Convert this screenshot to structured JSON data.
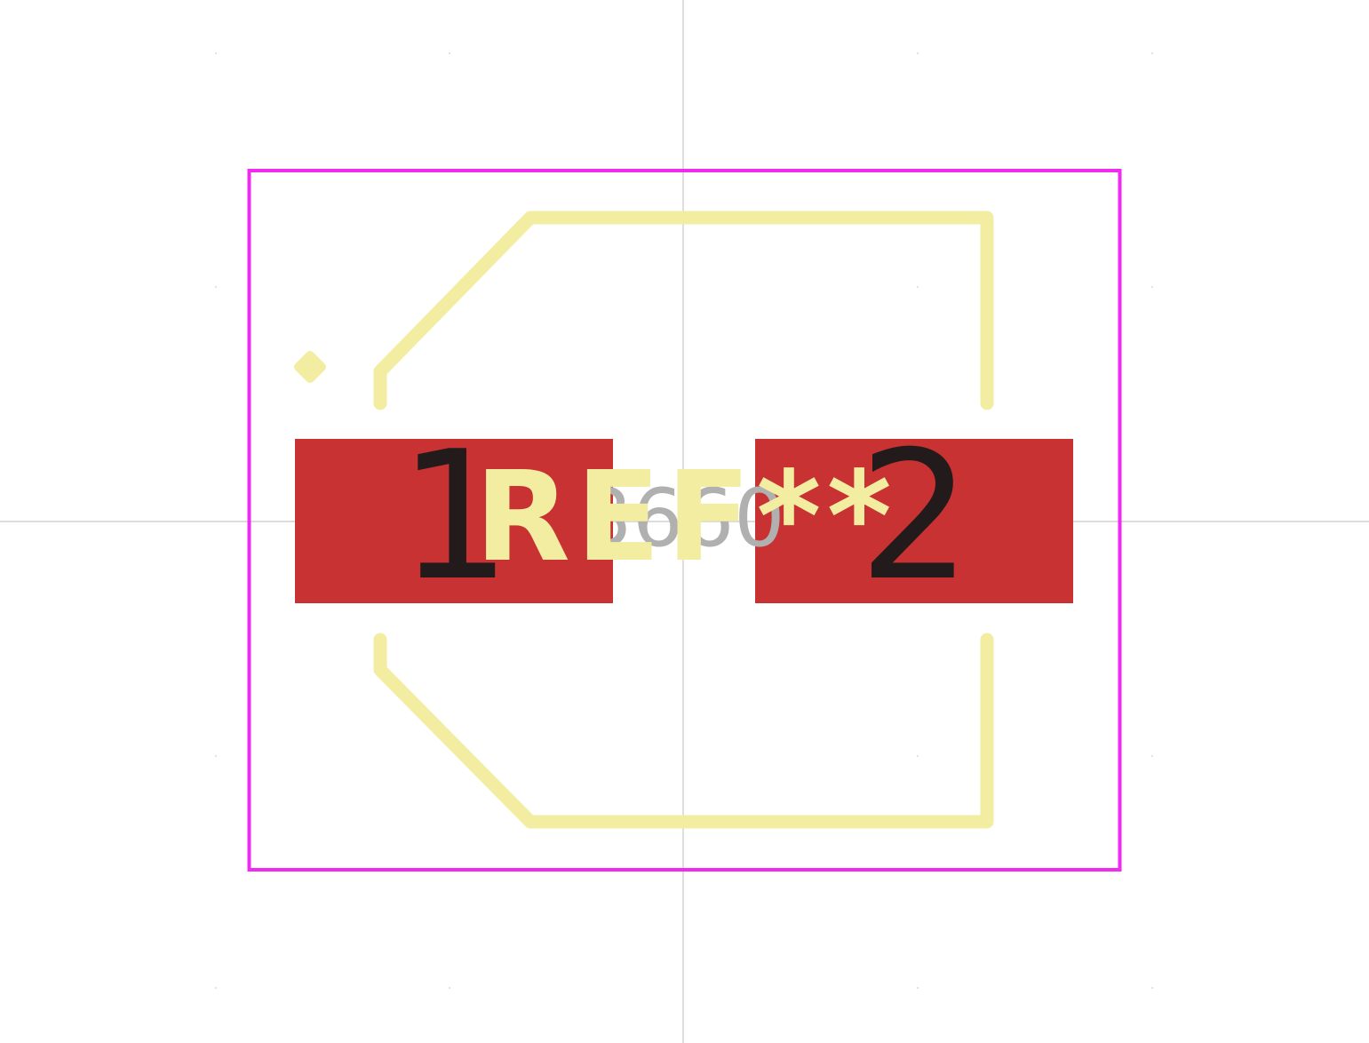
{
  "footprint": {
    "reference": "REF**",
    "value": "3660",
    "pads": [
      {
        "number": "1"
      },
      {
        "number": "2"
      }
    ]
  },
  "colors": {
    "background": "#ffffff",
    "grid_axis": "#c8c8c8",
    "courtyard": "#f02bf0",
    "silkscreen": "#f2eda1",
    "pad": "#c83232",
    "pad_number": "#231a1c",
    "fab_text": "#b0b0b0"
  }
}
